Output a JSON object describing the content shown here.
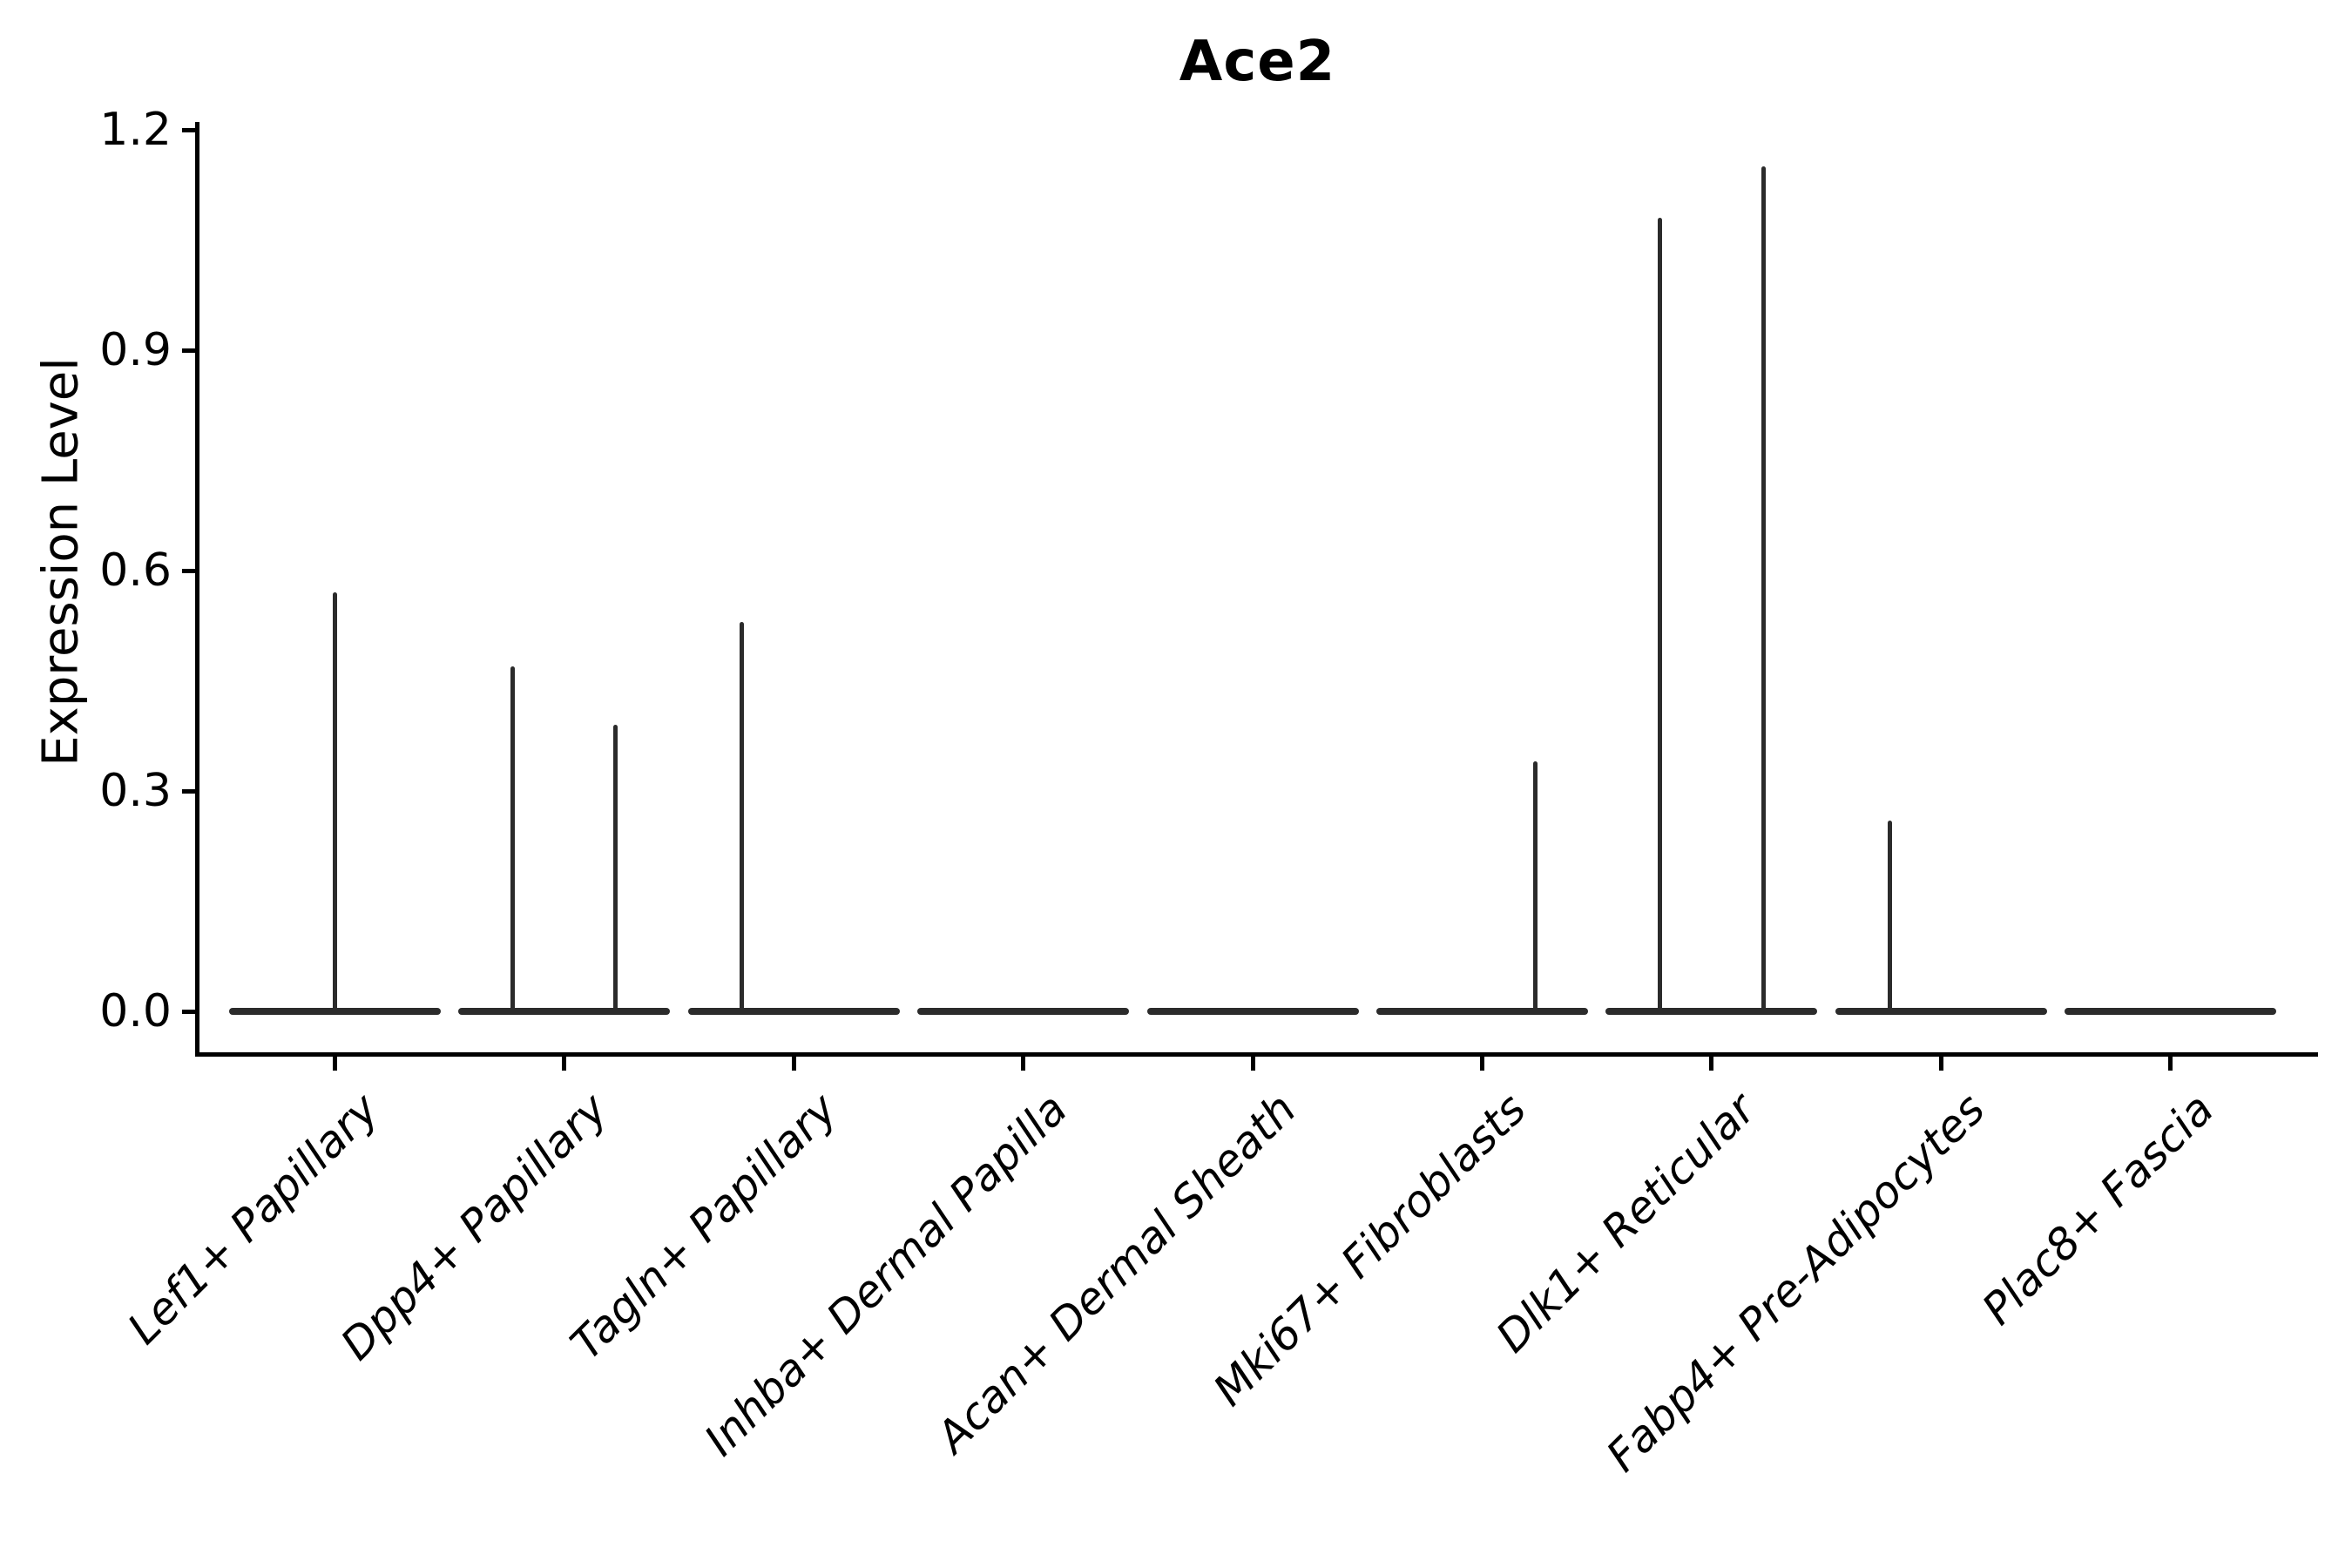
{
  "title": "Ace2",
  "ylabel": "Expression Level",
  "chart_data": {
    "type": "violin",
    "title": "Ace2",
    "xlabel": "",
    "ylabel": "Expression Level",
    "ylim": [
      0.0,
      1.2
    ],
    "yticks": [
      0.0,
      0.3,
      0.6,
      0.9,
      1.2
    ],
    "ytick_labels": [
      "0.0",
      "0.3",
      "0.6",
      "0.9",
      "1.2"
    ],
    "grid": false,
    "legend_position": "none",
    "x_label_rotation_deg": 45,
    "x_label_style": "italic",
    "line_color": "#2b2b2b",
    "axis_color": "#000000",
    "background_color": "#ffffff",
    "categories": [
      "Lef1+ Papillary",
      "Dpp4+ Papillary",
      "Tagln+ Papillary",
      "Inhba+ Dermal Papilla",
      "Acan+ Dermal Sheath",
      "Mki67+ Fibroblasts",
      "Dlk1+ Reticular",
      "Fabp4+ Pre-Adipocytes",
      "Plac8+ Fascia"
    ],
    "violins": [
      {
        "category": "Lef1+ Papillary",
        "baseline_value": 0.0,
        "spikes": [
          {
            "offset": 0.0,
            "value": 0.57
          }
        ]
      },
      {
        "category": "Dpp4+ Papillary",
        "baseline_value": 0.0,
        "spikes": [
          {
            "offset": -0.245,
            "value": 0.47
          },
          {
            "offset": 0.24,
            "value": 0.39
          }
        ]
      },
      {
        "category": "Tagln+ Papillary",
        "baseline_value": 0.0,
        "spikes": [
          {
            "offset": -0.245,
            "value": 0.53
          }
        ]
      },
      {
        "category": "Inhba+ Dermal Papilla",
        "baseline_value": 0.0,
        "spikes": []
      },
      {
        "category": "Acan+ Dermal Sheath",
        "baseline_value": 0.0,
        "spikes": []
      },
      {
        "category": "Mki67+ Fibroblasts",
        "baseline_value": 0.0,
        "spikes": [
          {
            "offset": 0.25,
            "value": 0.34
          }
        ]
      },
      {
        "category": "Dlk1+ Reticular",
        "baseline_value": 0.0,
        "spikes": [
          {
            "offset": -0.245,
            "value": 1.08
          },
          {
            "offset": 0.245,
            "value": 1.15
          }
        ]
      },
      {
        "category": "Fabp4+ Pre-Adipocytes",
        "baseline_value": 0.0,
        "spikes": [
          {
            "offset": -0.24,
            "value": 0.26
          }
        ]
      },
      {
        "category": "Plac8+ Fascia",
        "baseline_value": 0.0,
        "spikes": []
      }
    ]
  }
}
